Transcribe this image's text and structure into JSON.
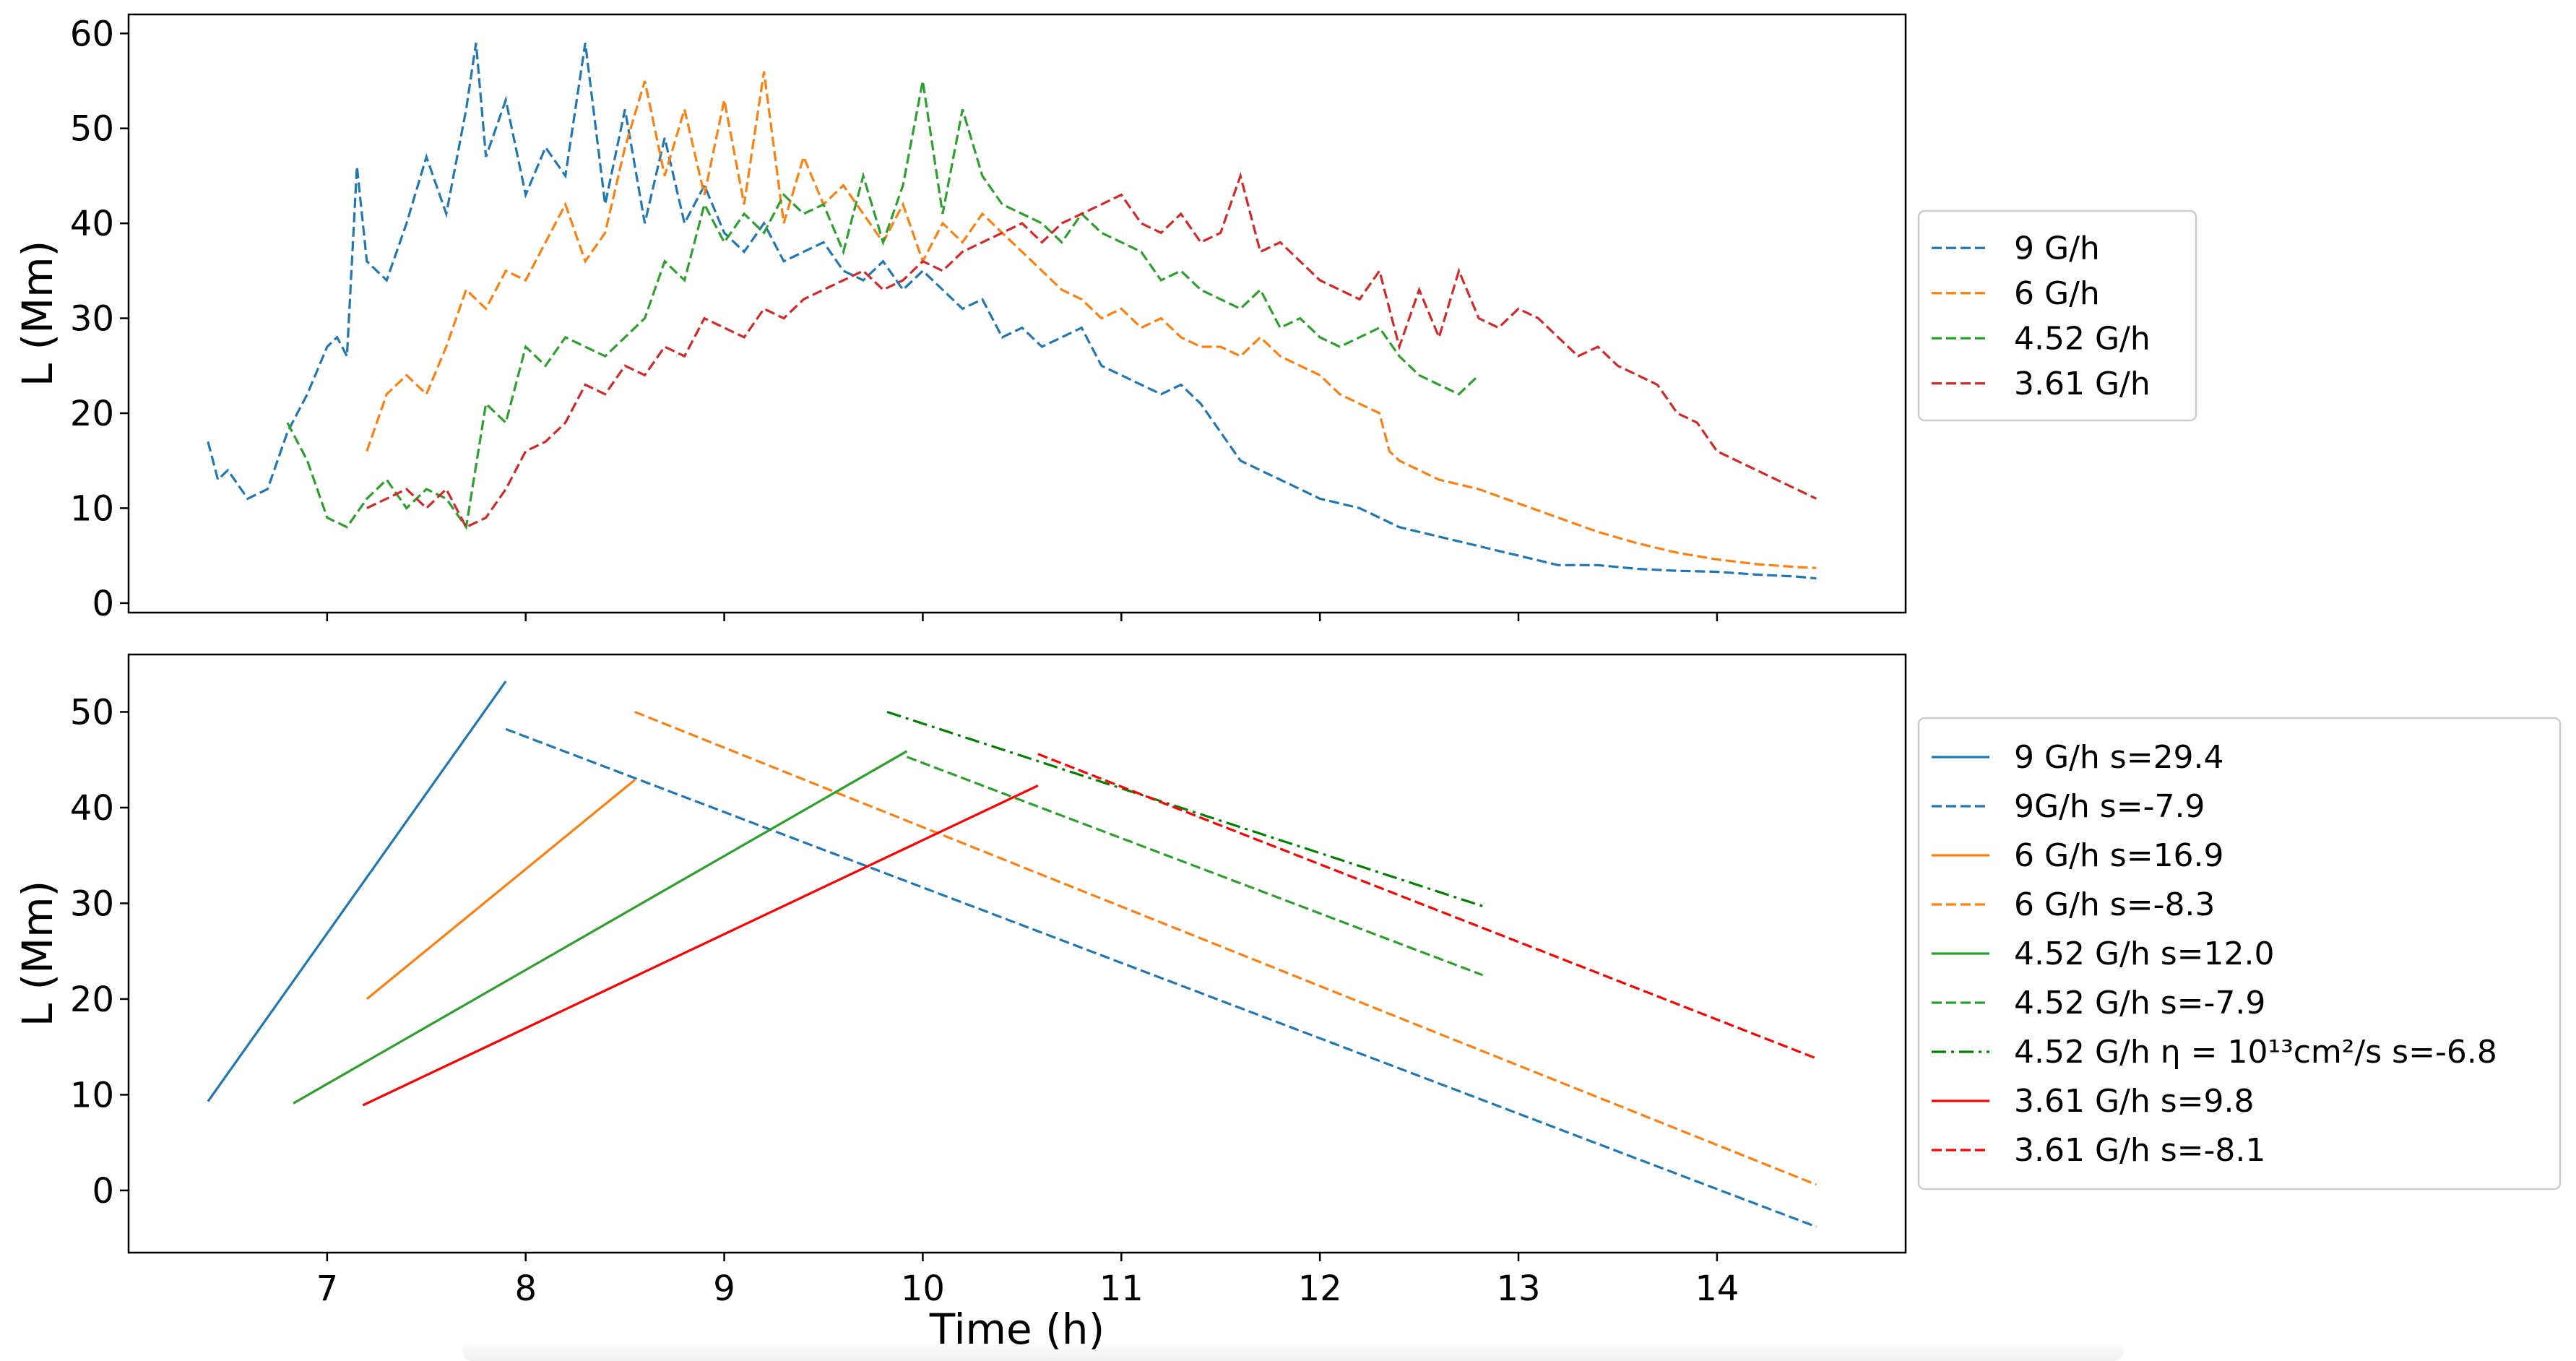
{
  "chart_data": [
    {
      "type": "line",
      "panel": "top",
      "title": "",
      "xlabel": "",
      "ylabel": "L (Mm)",
      "xlim": [
        6.0,
        14.95
      ],
      "ylim": [
        -1,
        62
      ],
      "yticks": [
        0,
        10,
        20,
        30,
        40,
        50,
        60
      ],
      "xticks": [
        7,
        8,
        9,
        10,
        11,
        12,
        13,
        14
      ],
      "show_xticklabels": false,
      "legend_position": "right-center",
      "series": [
        {
          "name": "9 G/h",
          "color": "#1f77b4",
          "style": "dashed",
          "x": [
            6.4,
            6.45,
            6.5,
            6.6,
            6.7,
            6.8,
            6.85,
            6.9,
            7.0,
            7.05,
            7.1,
            7.15,
            7.2,
            7.3,
            7.4,
            7.5,
            7.6,
            7.7,
            7.75,
            7.8,
            7.9,
            8.0,
            8.1,
            8.2,
            8.3,
            8.4,
            8.5,
            8.6,
            8.7,
            8.8,
            8.9,
            9.0,
            9.1,
            9.2,
            9.3,
            9.4,
            9.5,
            9.6,
            9.7,
            9.8,
            9.9,
            10.0,
            10.1,
            10.2,
            10.3,
            10.4,
            10.5,
            10.6,
            10.7,
            10.8,
            10.9,
            11.0,
            11.1,
            11.2,
            11.3,
            11.4,
            11.5,
            11.6,
            11.7,
            11.8,
            11.9,
            12.0,
            12.2,
            12.4,
            12.6,
            12.8,
            13.0,
            13.2,
            13.4,
            13.6,
            13.8,
            14.0,
            14.2,
            14.4,
            14.5
          ],
          "y": [
            17,
            13,
            14,
            11,
            12,
            18,
            20,
            22,
            27,
            28,
            26,
            46,
            36,
            34,
            40,
            47,
            41,
            52,
            59,
            47,
            53,
            43,
            48,
            45,
            59,
            42,
            52,
            40,
            49,
            40,
            44,
            39,
            37,
            40,
            36,
            37,
            38,
            35,
            34,
            36,
            33,
            35,
            33,
            31,
            32,
            28,
            29,
            27,
            28,
            29,
            25,
            24,
            23,
            22,
            23,
            21,
            18,
            15,
            14,
            13,
            12,
            11,
            10,
            8,
            7,
            6,
            5,
            4,
            4,
            3.6,
            3.4,
            3.3,
            3.0,
            2.8,
            2.6
          ]
        },
        {
          "name": "6 G/h",
          "color": "#ff7f0e",
          "style": "dashed",
          "x": [
            7.2,
            7.3,
            7.4,
            7.5,
            7.6,
            7.7,
            7.8,
            7.9,
            8.0,
            8.1,
            8.2,
            8.3,
            8.4,
            8.5,
            8.6,
            8.7,
            8.8,
            8.9,
            9.0,
            9.1,
            9.2,
            9.3,
            9.4,
            9.5,
            9.6,
            9.7,
            9.8,
            9.9,
            10.0,
            10.1,
            10.2,
            10.3,
            10.4,
            10.5,
            10.6,
            10.7,
            10.8,
            10.9,
            11.0,
            11.1,
            11.2,
            11.3,
            11.4,
            11.5,
            11.6,
            11.7,
            11.8,
            11.9,
            12.0,
            12.1,
            12.2,
            12.3,
            12.35,
            12.4,
            12.6,
            12.8,
            13.0,
            13.2,
            13.4,
            13.6,
            13.8,
            14.0,
            14.2,
            14.4,
            14.5
          ],
          "y": [
            16,
            22,
            24,
            22,
            27,
            33,
            31,
            35,
            34,
            38,
            42,
            36,
            39,
            48,
            55,
            45,
            52,
            43,
            53,
            42,
            56,
            40,
            47,
            42,
            44,
            41,
            38,
            42,
            36,
            40,
            38,
            41,
            39,
            37,
            35,
            33,
            32,
            30,
            31,
            29,
            30,
            28,
            27,
            27,
            26,
            28,
            26,
            25,
            24,
            22,
            21,
            20,
            16,
            15,
            13,
            12,
            10.5,
            9,
            7.5,
            6.3,
            5.3,
            4.6,
            4.1,
            3.8,
            3.7
          ]
        },
        {
          "name": "4.52 G/h",
          "color": "#2ca02c",
          "style": "dashed",
          "x": [
            6.8,
            6.9,
            7.0,
            7.1,
            7.2,
            7.3,
            7.4,
            7.5,
            7.6,
            7.7,
            7.8,
            7.9,
            8.0,
            8.1,
            8.2,
            8.3,
            8.4,
            8.5,
            8.6,
            8.7,
            8.8,
            8.9,
            9.0,
            9.1,
            9.2,
            9.3,
            9.4,
            9.5,
            9.6,
            9.7,
            9.8,
            9.9,
            10.0,
            10.1,
            10.2,
            10.3,
            10.4,
            10.5,
            10.6,
            10.7,
            10.8,
            10.9,
            11.0,
            11.1,
            11.2,
            11.3,
            11.4,
            11.5,
            11.6,
            11.7,
            11.8,
            11.9,
            12.0,
            12.1,
            12.2,
            12.3,
            12.4,
            12.5,
            12.6,
            12.7,
            12.8
          ],
          "y": [
            19,
            15,
            9,
            8,
            11,
            13,
            10,
            12,
            11,
            8,
            21,
            19,
            27,
            25,
            28,
            27,
            26,
            28,
            30,
            36,
            34,
            42,
            38,
            41,
            39,
            43,
            41,
            42,
            37,
            45,
            38,
            44,
            55,
            41,
            52,
            45,
            42,
            41,
            40,
            38,
            41,
            39,
            38,
            37,
            34,
            35,
            33,
            32,
            31,
            33,
            29,
            30,
            28,
            27,
            28,
            29,
            26,
            24,
            23,
            22,
            24
          ]
        },
        {
          "name": "3.61 G/h",
          "color": "#d62728",
          "style": "dashed",
          "x": [
            7.2,
            7.3,
            7.4,
            7.5,
            7.6,
            7.7,
            7.8,
            7.9,
            8.0,
            8.1,
            8.2,
            8.3,
            8.4,
            8.5,
            8.6,
            8.7,
            8.8,
            8.9,
            9.0,
            9.1,
            9.2,
            9.3,
            9.4,
            9.5,
            9.6,
            9.7,
            9.8,
            9.9,
            10.0,
            10.1,
            10.2,
            10.3,
            10.4,
            10.5,
            10.6,
            10.7,
            10.8,
            10.9,
            11.0,
            11.1,
            11.2,
            11.3,
            11.4,
            11.5,
            11.6,
            11.7,
            11.8,
            11.9,
            12.0,
            12.1,
            12.2,
            12.3,
            12.4,
            12.5,
            12.6,
            12.7,
            12.8,
            12.9,
            13.0,
            13.1,
            13.2,
            13.3,
            13.4,
            13.5,
            13.6,
            13.7,
            13.8,
            13.9,
            14.0,
            14.2,
            14.4,
            14.5
          ],
          "y": [
            10,
            11,
            12,
            10,
            12,
            8,
            9,
            12,
            16,
            17,
            19,
            23,
            22,
            25,
            24,
            27,
            26,
            30,
            29,
            28,
            31,
            30,
            32,
            33,
            34,
            35,
            33,
            34,
            36,
            35,
            37,
            38,
            39,
            40,
            38,
            40,
            41,
            42,
            43,
            40,
            39,
            41,
            38,
            39,
            45,
            37,
            38,
            36,
            34,
            33,
            32,
            35,
            27,
            33,
            28,
            35,
            30,
            29,
            31,
            30,
            28,
            26,
            27,
            25,
            24,
            23,
            20,
            19,
            16,
            14,
            12,
            11
          ]
        }
      ]
    },
    {
      "type": "line",
      "panel": "bottom",
      "title": "",
      "xlabel": "Time (h)",
      "ylabel": "L (Mm)",
      "xlim": [
        6.0,
        14.95
      ],
      "ylim": [
        -6.5,
        56
      ],
      "yticks": [
        0,
        10,
        20,
        30,
        40,
        50
      ],
      "xticks": [
        7,
        8,
        9,
        10,
        11,
        12,
        13,
        14
      ],
      "xticklabels": [
        "7",
        "8",
        "9",
        "10",
        "11",
        "12",
        "13",
        "14"
      ],
      "legend_position": "right-center",
      "series": [
        {
          "name": "9 G/h s=29.4",
          "color": "#1f77b4",
          "style": "solid",
          "x": [
            6.4,
            7.9
          ],
          "y": [
            9.3,
            53.2
          ]
        },
        {
          "name": "9G/h s=-7.9",
          "color": "#1f77b4",
          "style": "dashed",
          "x": [
            7.9,
            14.5
          ],
          "y": [
            48.2,
            -3.8
          ]
        },
        {
          "name": "6 G/h s=16.9",
          "color": "#ff7f0e",
          "style": "solid",
          "x": [
            7.2,
            8.55
          ],
          "y": [
            20.0,
            42.9
          ]
        },
        {
          "name": "6 G/h s=-8.3",
          "color": "#ff7f0e",
          "style": "dashed",
          "x": [
            8.55,
            14.5
          ],
          "y": [
            50.0,
            0.6
          ]
        },
        {
          "name": "4.52 G/h s=12.0",
          "color": "#2ca02c",
          "style": "solid",
          "x": [
            6.83,
            9.92
          ],
          "y": [
            9.1,
            45.9
          ]
        },
        {
          "name": "4.52 G/h s=-7.9",
          "color": "#2ca02c",
          "style": "dashed",
          "x": [
            9.92,
            12.82
          ],
          "y": [
            45.3,
            22.5
          ]
        },
        {
          "name": "4.52 G/h η = 10¹³cm²/s s=-6.8",
          "color": "#008000",
          "style": "dashdot",
          "x": [
            9.82,
            12.82
          ],
          "y": [
            50.0,
            29.7
          ]
        },
        {
          "name": "3.61 G/h s=9.8",
          "color": "#ff0000",
          "style": "solid",
          "x": [
            7.18,
            10.58
          ],
          "y": [
            8.9,
            42.3
          ]
        },
        {
          "name": "3.61 G/h s=-8.1",
          "color": "#ff0000",
          "style": "dashed",
          "x": [
            10.58,
            14.5
          ],
          "y": [
            45.6,
            13.8
          ]
        }
      ]
    }
  ]
}
